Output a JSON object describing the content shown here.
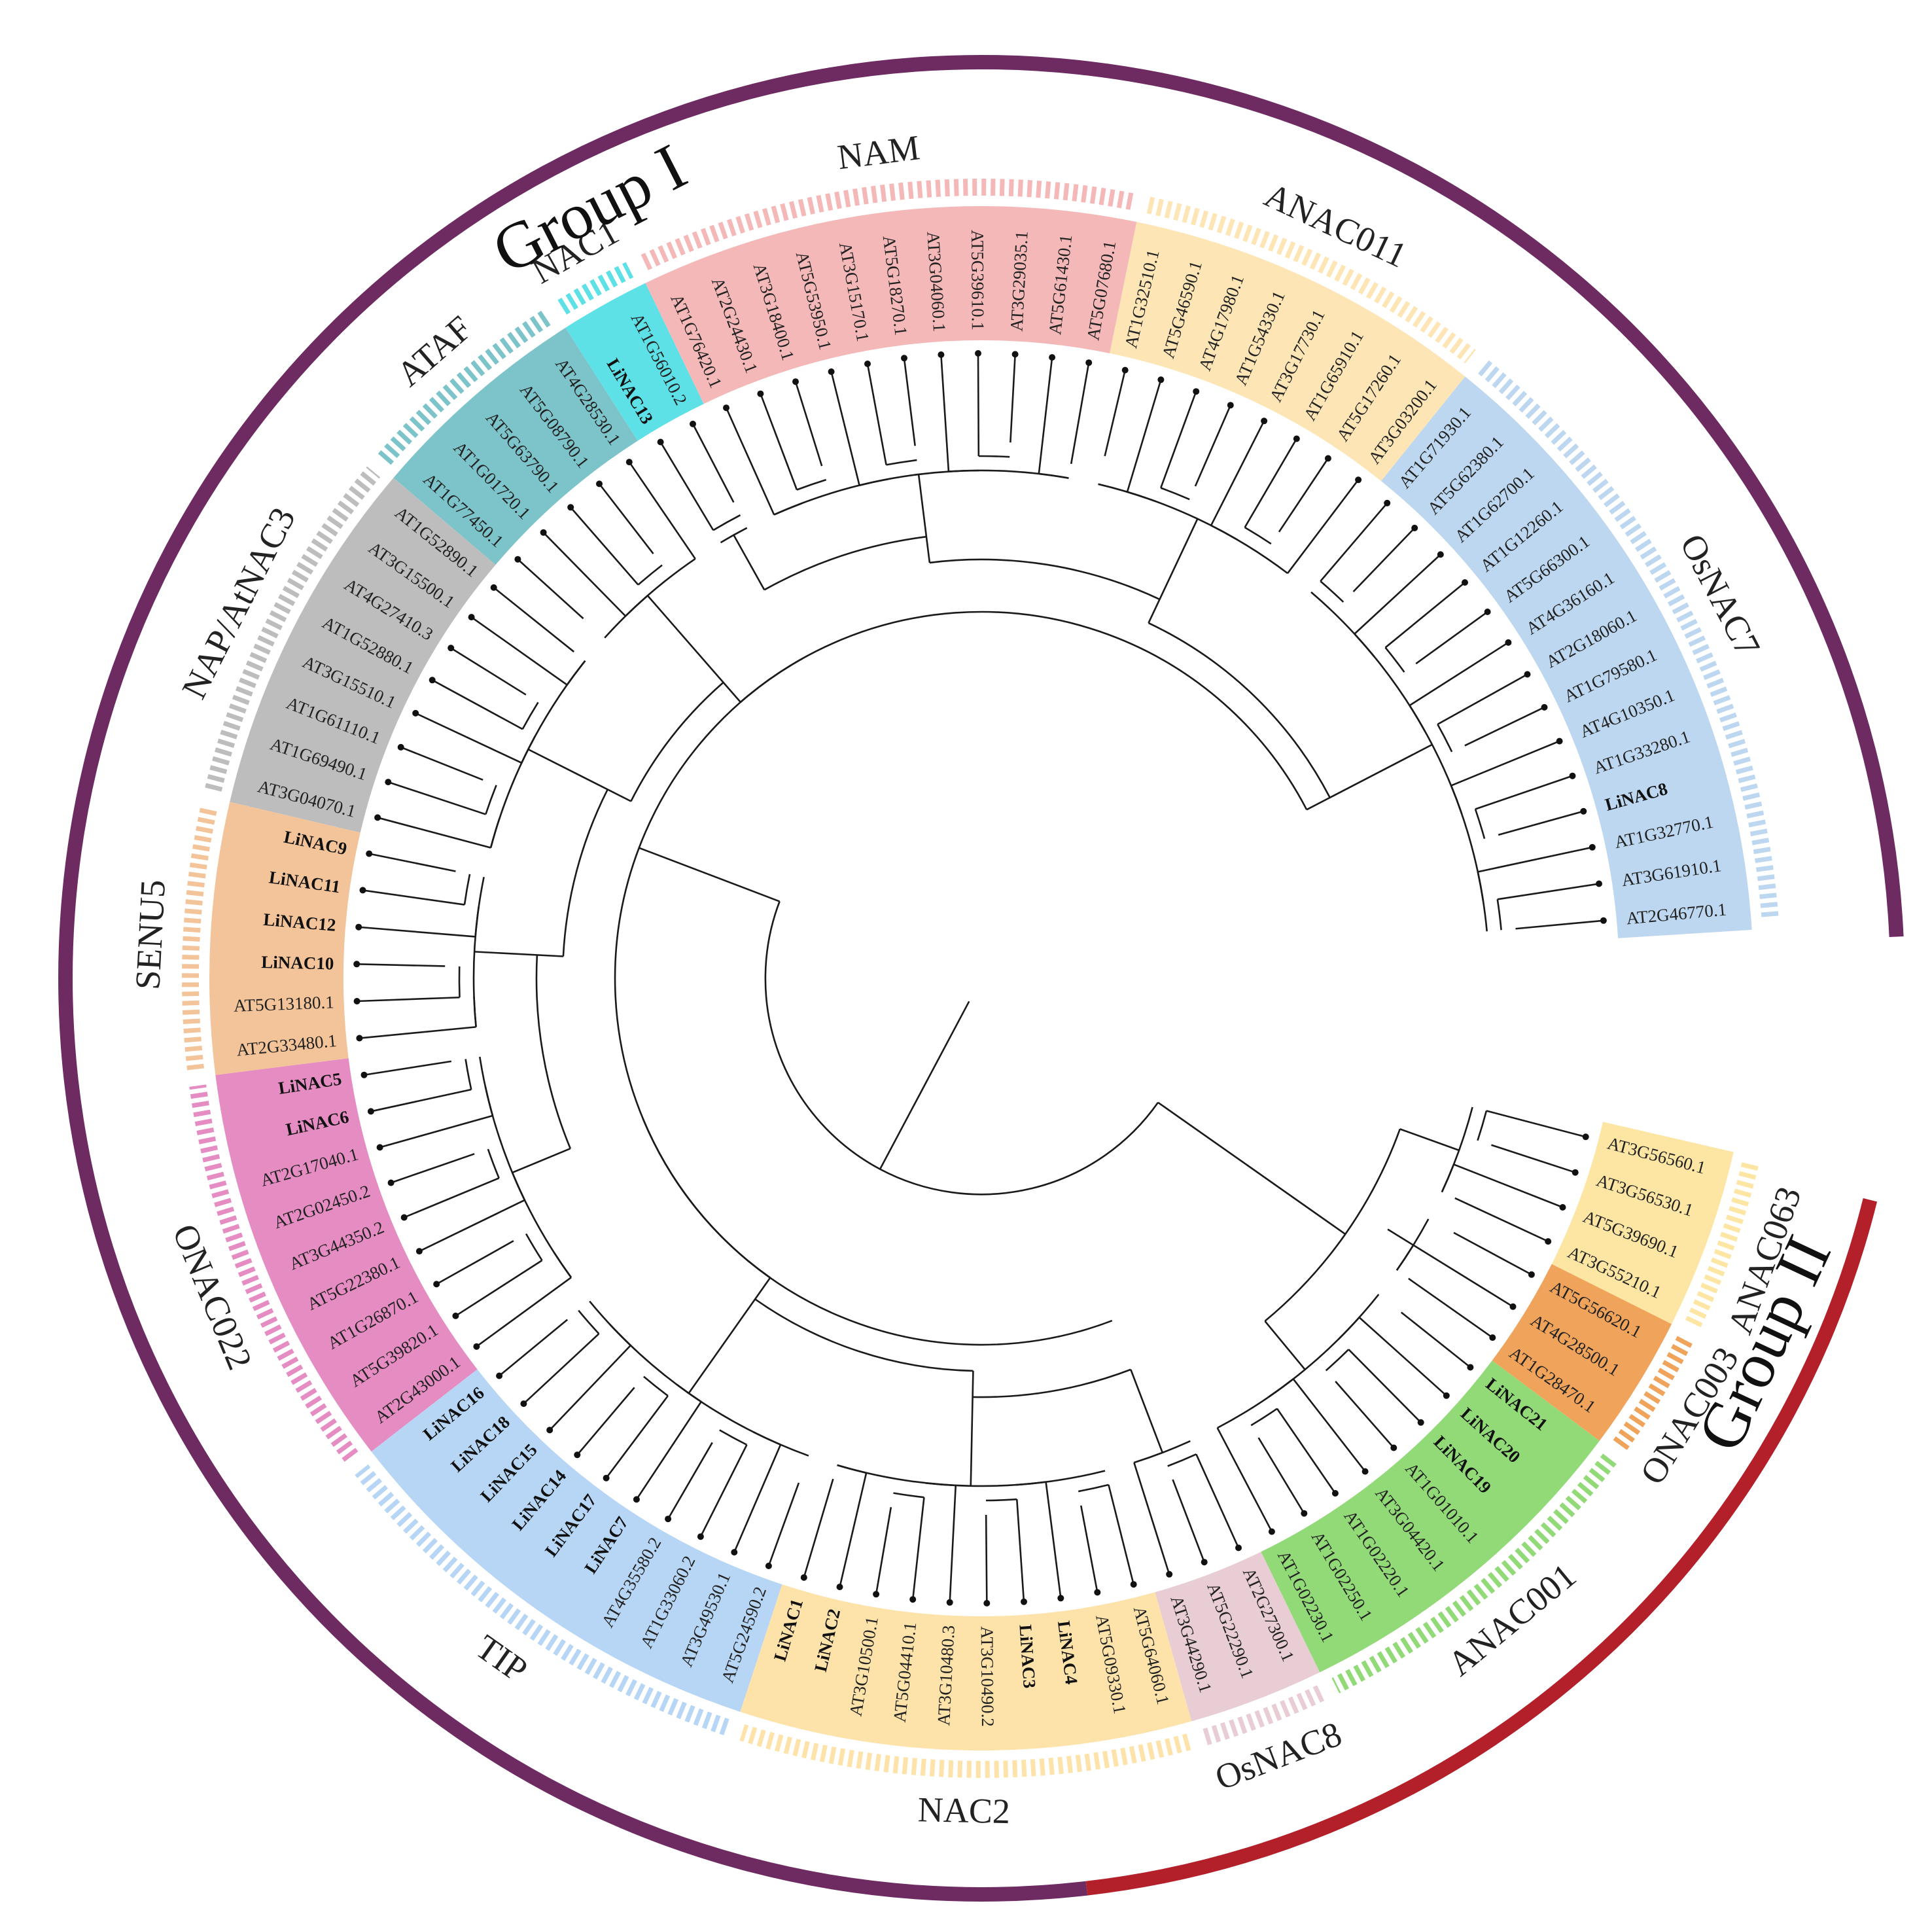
{
  "groups": [
    {
      "label": "Group I",
      "color": "#6e2b62"
    },
    {
      "label": "Group II",
      "color": "#b3202a"
    }
  ],
  "subfamilies": [
    {
      "label": "OsNAC7",
      "color": "#bcd7ef"
    },
    {
      "label": "ANAC011",
      "color": "#fde5b5"
    },
    {
      "label": "NAM",
      "color": "#f4b8b8"
    },
    {
      "label": "NAC1",
      "color": "#5ee0e7"
    },
    {
      "label": "ATAF",
      "color": "#7cc4c9"
    },
    {
      "label": "NAP/AtNAC3",
      "color": "#bdbdbd"
    },
    {
      "label": "SENU5",
      "color": "#f3c499"
    },
    {
      "label": "ONAC022",
      "color": "#e58cc2"
    },
    {
      "label": "TIP",
      "color": "#b7d6f5"
    },
    {
      "label": "NAC2",
      "color": "#fde3aa"
    },
    {
      "label": "OsNAC8",
      "color": "#e9cdd4"
    },
    {
      "label": "ANAC001",
      "color": "#92da78"
    },
    {
      "label": "ONAC003",
      "color": "#f0a35a"
    },
    {
      "label": "ANAC063",
      "color": "#fde6a4"
    }
  ],
  "leaves": [
    "AT2G46770.1",
    "AT3G61910.1",
    "AT1G32770.1",
    "LiNAC8",
    "AT1G33280.1",
    "AT4G10350.1",
    "AT1G79580.1",
    "AT2G18060.1",
    "AT4G36160.1",
    "AT5G66300.1",
    "AT1G12260.1",
    "AT1G62700.1",
    "AT5G62380.1",
    "AT1G71930.1",
    "AT3G03200.1",
    "AT5G17260.1",
    "AT1G65910.1",
    "AT3G17730.1",
    "AT1G54330.1",
    "AT4G17980.1",
    "AT5G46590.1",
    "AT1G32510.1",
    "AT5G07680.1",
    "AT5G61430.1",
    "AT3G29035.1",
    "AT5G39610.1",
    "AT3G04060.1",
    "AT5G18270.1",
    "AT3G15170.1",
    "AT5G53950.1",
    "AT3G18400.1",
    "AT2G24430.1",
    "AT1G76420.1",
    "AT1G56010.2",
    "LiNAC13",
    "AT4G28530.1",
    "AT5G08790.1",
    "AT5G63790.1",
    "AT1G01720.1",
    "AT1G77450.1",
    "AT1G52890.1",
    "AT3G15500.1",
    "AT4G27410.3",
    "AT1G52880.1",
    "AT3G15510.1",
    "AT1G61110.1",
    "AT1G69490.1",
    "AT3G04070.1",
    "LiNAC9",
    "LiNAC11",
    "LiNAC12",
    "LiNAC10",
    "AT5G13180.1",
    "AT2G33480.1",
    "LiNAC5",
    "LiNAC6",
    "AT2G17040.1",
    "AT2G02450.2",
    "AT3G44350.2",
    "AT5G22380.1",
    "AT1G26870.1",
    "AT5G39820.1",
    "AT2G43000.1",
    "LiNAC16",
    "LiNAC18",
    "LiNAC15",
    "LiNAC14",
    "LiNAC17",
    "LiNAC7",
    "AT4G35580.2",
    "AT1G33060.2",
    "AT3G49530.1",
    "AT5G24590.2",
    "LiNAC1",
    "LiNAC2",
    "AT3G10500.1",
    "AT5G04410.1",
    "AT3G10480.3",
    "AT3G10490.2",
    "LiNAC3",
    "LiNAC4",
    "AT5G09330.1",
    "AT5G64060.1",
    "AT3G44290.1",
    "AT5G22290.1",
    "AT2G27300.1",
    "AT1G02230.1",
    "AT1G02250.1",
    "AT1G02220.1",
    "AT3G04420.1",
    "AT1G01010.1",
    "LiNAC19",
    "LiNAC20",
    "LiNAC21",
    "AT1G28470.1",
    "AT4G28500.1",
    "AT5G56620.1",
    "AT3G55210.1",
    "AT5G39690.1",
    "AT3G56530.1",
    "AT3G56560.1"
  ]
}
